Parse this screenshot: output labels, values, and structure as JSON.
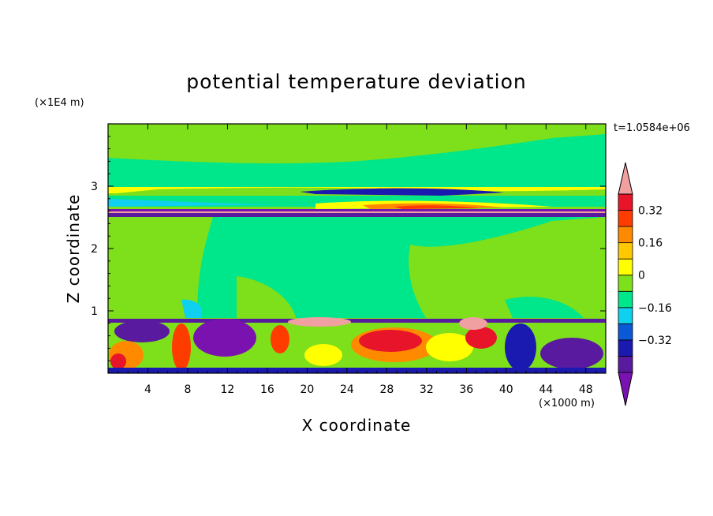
{
  "chart_data": {
    "type": "heatmap",
    "title": "potential temperature deviation",
    "xlabel": "X coordinate",
    "ylabel": "Z coordinate",
    "x_unit": "(×1000 m)",
    "y_unit": "(×1E4 m)",
    "time_label": "t=1.0584e+06",
    "xlim": [
      0,
      50
    ],
    "ylim": [
      0,
      4
    ],
    "x_ticks": [
      4,
      8,
      12,
      16,
      20,
      24,
      28,
      32,
      36,
      40,
      44,
      48
    ],
    "y_ticks": [
      1,
      2,
      3
    ],
    "colorbar": {
      "levels": [
        -0.48,
        -0.4,
        -0.32,
        -0.24,
        -0.16,
        -0.08,
        0,
        0.08,
        0.16,
        0.24,
        0.32,
        0.4
      ],
      "tick_labels": [
        "0.32",
        "0.16",
        "0",
        "−0.16",
        "−0.32"
      ],
      "tick_values": [
        0.32,
        0.16,
        0,
        -0.16,
        -0.32
      ],
      "colors": [
        "#7a12b0",
        "#5a1aa0",
        "#1a1ab0",
        "#0a5ad8",
        "#10d0f0",
        "#00e68a",
        "#7ee01a",
        "#ffff00",
        "#ffc800",
        "#ff8a00",
        "#ff3c00",
        "#e8142a",
        "#f0a0a0"
      ]
    }
  }
}
